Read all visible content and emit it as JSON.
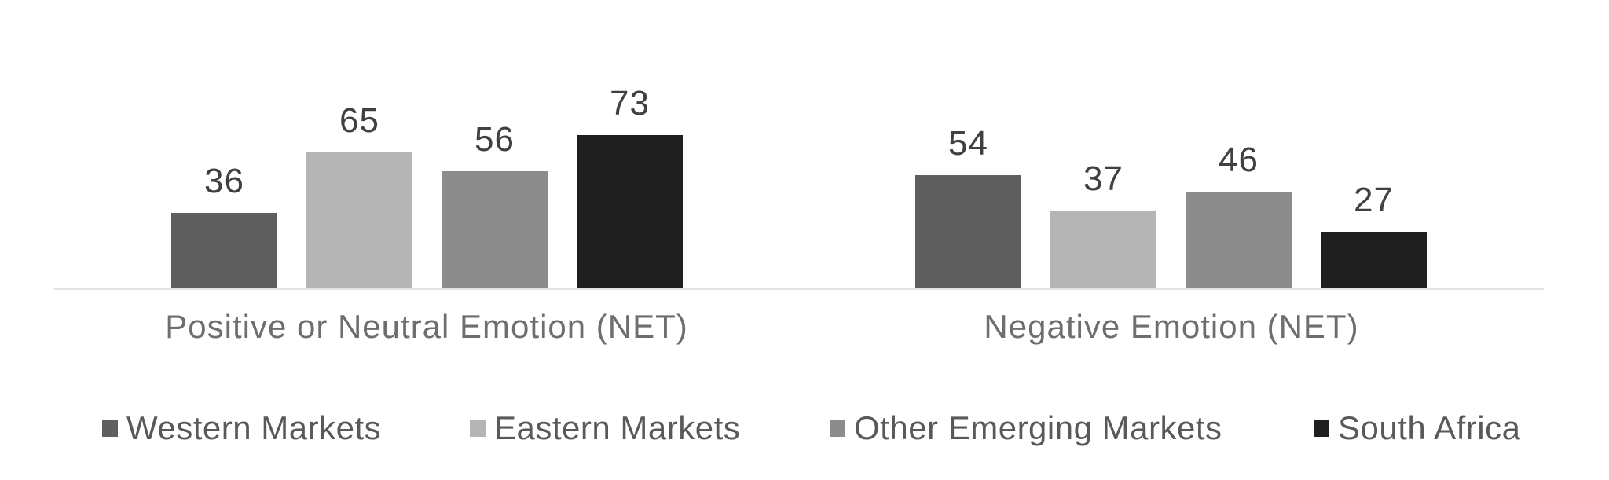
{
  "chart_data": {
    "type": "bar",
    "title": "",
    "xlabel": "",
    "ylabel": "",
    "categories": [
      "Positive or Neutral Emotion (NET)",
      "Negative Emotion (NET)"
    ],
    "series": [
      {
        "name": "Western Markets",
        "color": "#5f5f5f",
        "values": [
          36,
          54
        ]
      },
      {
        "name": "Eastern Markets",
        "color": "#b5b5b5",
        "values": [
          65,
          37
        ]
      },
      {
        "name": "Other Emerging Markets",
        "color": "#8c8c8c",
        "values": [
          56,
          46
        ]
      },
      {
        "name": "South Africa",
        "color": "#1f1f1f",
        "values": [
          73,
          27
        ]
      }
    ],
    "ylim": [
      0,
      80
    ],
    "grid": false,
    "axis_line_color": "#e2e2e2",
    "value_label_color": "#404040",
    "category_label_color": "#6e6e6e",
    "legend_text_color": "#595959",
    "value_labels_shown": true,
    "legend_position": "bottom"
  }
}
